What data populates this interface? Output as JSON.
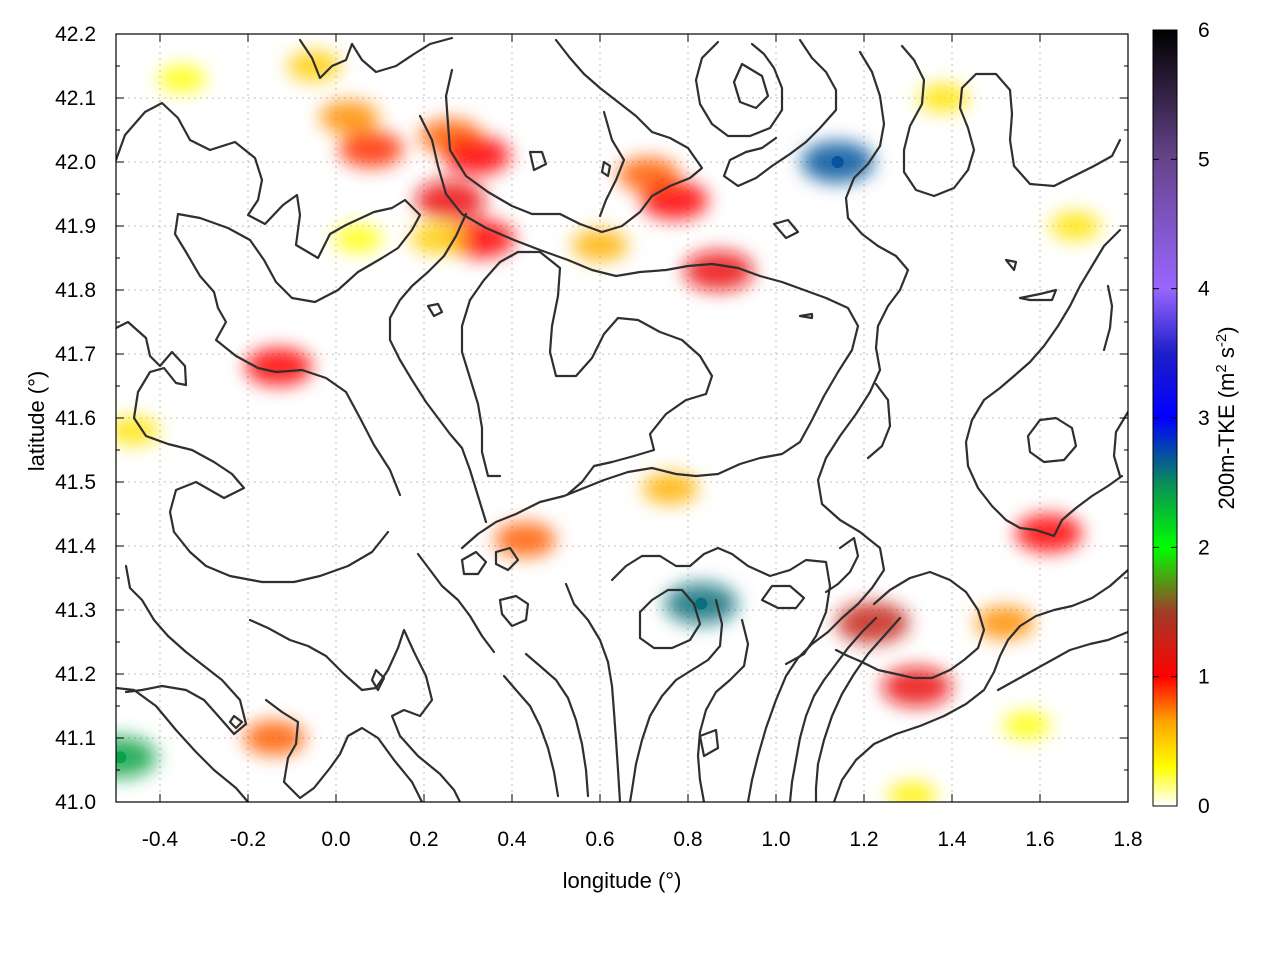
{
  "chart_data": {
    "type": "heatmap",
    "xlabel": "longitude (°)",
    "ylabel": "latitude (°)",
    "xlim": [
      -0.5,
      1.8
    ],
    "ylim": [
      41.0,
      42.2
    ],
    "x_ticks": [
      -0.4,
      -0.2,
      0.0,
      0.2,
      0.4,
      0.6,
      0.8,
      1.0,
      1.2,
      1.4,
      1.6,
      1.8
    ],
    "x_tick_labels": [
      "-0.4",
      "-0.2",
      "0.0",
      "0.2",
      "0.4",
      "0.6",
      "0.8",
      "1.0",
      "1.2",
      "1.4",
      "1.6",
      "1.8"
    ],
    "y_ticks": [
      41.0,
      41.1,
      41.2,
      41.3,
      41.4,
      41.5,
      41.6,
      41.7,
      41.8,
      41.9,
      42.0,
      42.1,
      42.2
    ],
    "y_tick_labels": [
      "41.0",
      "41.1",
      "41.2",
      "41.3",
      "41.4",
      "41.5",
      "41.6",
      "41.7",
      "41.8",
      "41.9",
      "42.0",
      "42.1",
      "42.2"
    ],
    "grid": true,
    "colorbar": {
      "label_main": "200m-TKE (m",
      "sup1": "2",
      "label_mid": " s",
      "sup2": "-2",
      "label_end": ")",
      "range": [
        0,
        6
      ],
      "ticks": [
        0,
        1,
        2,
        3,
        4,
        5,
        6
      ],
      "tick_labels": [
        "0",
        "1",
        "2",
        "3",
        "4",
        "5",
        "6"
      ],
      "palette": [
        {
          "v": 0.0,
          "color": "#ffffff"
        },
        {
          "v": 0.3,
          "color": "#ffff00"
        },
        {
          "v": 0.65,
          "color": "#ffa500"
        },
        {
          "v": 1.0,
          "color": "#ff0000"
        },
        {
          "v": 1.5,
          "color": "#a03c28"
        },
        {
          "v": 2.0,
          "color": "#00ff00"
        },
        {
          "v": 2.5,
          "color": "#0a8c5a"
        },
        {
          "v": 3.0,
          "color": "#0000ff"
        },
        {
          "v": 3.5,
          "color": "#1e1ec8"
        },
        {
          "v": 4.0,
          "color": "#9966ff"
        },
        {
          "v": 5.0,
          "color": "#66448c"
        },
        {
          "v": 6.0,
          "color": "#000000"
        }
      ]
    },
    "tke_features": [
      {
        "lon": -0.35,
        "lat": 42.13,
        "tke": 0.3
      },
      {
        "lon": -0.05,
        "lat": 42.15,
        "tke": 0.5
      },
      {
        "lon": 0.03,
        "lat": 42.07,
        "tke": 0.7
      },
      {
        "lon": 0.08,
        "lat": 42.02,
        "tke": 0.9
      },
      {
        "lon": 0.26,
        "lat": 42.04,
        "tke": 0.8
      },
      {
        "lon": 0.26,
        "lat": 41.94,
        "tke": 1.1
      },
      {
        "lon": 0.33,
        "lat": 41.88,
        "tke": 1.0
      },
      {
        "lon": 0.32,
        "lat": 42.01,
        "tke": 1.0
      },
      {
        "lon": 0.71,
        "lat": 41.98,
        "tke": 0.8
      },
      {
        "lon": 0.77,
        "lat": 41.94,
        "tke": 1.0
      },
      {
        "lon": 0.87,
        "lat": 41.83,
        "tke": 1.1
      },
      {
        "lon": 1.14,
        "lat": 42.0,
        "tke": 2.7
      },
      {
        "lon": -0.13,
        "lat": 41.68,
        "tke": 1.0
      },
      {
        "lon": 0.43,
        "lat": 41.41,
        "tke": 0.8
      },
      {
        "lon": 0.76,
        "lat": 41.49,
        "tke": 0.6
      },
      {
        "lon": 0.83,
        "lat": 41.31,
        "tke": 2.6
      },
      {
        "lon": 1.22,
        "lat": 41.28,
        "tke": 1.3
      },
      {
        "lon": 1.32,
        "lat": 41.18,
        "tke": 1.1
      },
      {
        "lon": 1.62,
        "lat": 41.42,
        "tke": 1.0
      },
      {
        "lon": -0.49,
        "lat": 41.07,
        "tke": 2.4
      },
      {
        "lon": -0.14,
        "lat": 41.1,
        "tke": 0.8
      },
      {
        "lon": 1.57,
        "lat": 41.12,
        "tke": 0.3
      },
      {
        "lon": 1.31,
        "lat": 41.01,
        "tke": 0.35
      },
      {
        "lon": 0.23,
        "lat": 41.88,
        "tke": 0.5
      },
      {
        "lon": 0.6,
        "lat": 41.87,
        "tke": 0.6
      },
      {
        "lon": -0.46,
        "lat": 41.58,
        "tke": 0.4
      },
      {
        "lon": 1.52,
        "lat": 41.28,
        "tke": 0.7
      },
      {
        "lon": 1.38,
        "lat": 42.1,
        "tke": 0.4
      },
      {
        "lon": 1.68,
        "lat": 41.9,
        "tke": 0.4
      },
      {
        "lon": 0.05,
        "lat": 41.88,
        "tke": 0.3
      }
    ]
  }
}
